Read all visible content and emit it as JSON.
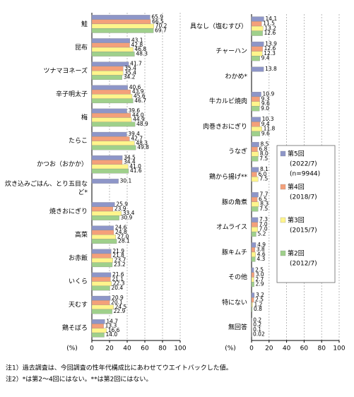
{
  "chart_data": [
    {
      "type": "bar",
      "orientation": "horizontal",
      "xlabel": "(%)",
      "categories": [
        "鮭",
        "昆布",
        "ツナマヨネーズ",
        "辛子明太子",
        "梅",
        "たらこ",
        "かつお（おかか）",
        "炊き込みごはん、とり五目など*",
        "焼きおにぎり",
        "高菜",
        "お赤飯",
        "いくら",
        "天むす",
        "鶏そぼろ"
      ],
      "series": [
        {
          "color": "#8e96c8",
          "values": [
            65.9,
            43.1,
            41.7,
            40.6,
            39.6,
            39.4,
            34.5,
            30.1,
            25.9,
            24.6,
            21.9,
            21.6,
            20.9,
            14.7
          ],
          "value_labels": [
            "65.9",
            "43.1",
            "41.7",
            "40.6",
            "39.6",
            "39.4",
            "34.5",
            "30.1",
            "25.9",
            "24.6",
            "21.9",
            "21.6",
            "20.9",
            "14.7"
          ]
        },
        {
          "color": "#f4a07a",
          "values": [
            66.5,
            42.8,
            35.4,
            43.9,
            44,
            42.7,
            34.4,
            null,
            23.9,
            24.8,
            21.8,
            21.1,
            20.1,
            13.3
          ],
          "value_labels": [
            "66.5",
            "42.8",
            "35.4",
            "43.9",
            "44.0",
            "42.7",
            "34.4",
            null,
            "23.9",
            "24.8",
            "21.8",
            "21.1",
            "20.1",
            "13.3"
          ]
        },
        {
          "color": "#fff58c",
          "values": [
            70.2,
            46.8,
            35.4,
            45.6,
            44.9,
            48.3,
            41,
            null,
            33.4,
            27,
            23.7,
            22.3,
            24.5,
            16.6
          ],
          "value_labels": [
            "70.2",
            "46.8",
            "35.4",
            "45.6",
            "44.9",
            "48.3",
            "41.0",
            null,
            "33.4",
            "27.0",
            "23.7",
            "22.3",
            "24.5",
            "16.6"
          ]
        },
        {
          "color": "#9fd08b",
          "values": [
            69.7,
            48.3,
            34.2,
            46.7,
            48.9,
            49.8,
            41.6,
            null,
            30.9,
            28.1,
            23.2,
            20.4,
            22.9,
            14
          ],
          "value_labels": [
            "69.7",
            "48.3",
            "34.2",
            "46.7",
            "48.9",
            "49.8",
            "41.6",
            null,
            "30.9",
            "28.1",
            "23.2",
            "20.4",
            "22.9",
            "14.0"
          ]
        }
      ],
      "xlim": [
        0,
        100
      ],
      "xticks": [
        0,
        20,
        40,
        60,
        80,
        100
      ],
      "grid": true
    },
    {
      "type": "bar",
      "orientation": "horizontal",
      "xlabel": "(%)",
      "categories": [
        "具なし（塩むすび）",
        "チャーハン",
        "わかめ*",
        "牛カルビ焼肉",
        "肉巻きおにぎり",
        "うなぎ",
        "鶏から揚げ**",
        "豚の角煮",
        "オムライス",
        "豚キムチ",
        "その他",
        "特にない",
        "無回答"
      ],
      "series": [
        {
          "name": "第5回",
          "period": "(2022/7)",
          "sample": "(n=9944)",
          "color": "#8e96c8",
          "values": [
            14.1,
            13.9,
            13.8,
            10.9,
            10.3,
            8.5,
            8.1,
            7.7,
            7.3,
            4.9,
            2.5,
            3.2,
            0.2
          ],
          "value_labels": [
            "14.1",
            "13.9",
            "13.8",
            "10.9",
            "10.3",
            "8.5",
            "8.1",
            "7.7",
            "7.3",
            "4.9",
            "2.5",
            "3.2",
            "0.2"
          ]
        },
        {
          "name": "第4回",
          "period": "(2018/7)",
          "color": "#f4a07a",
          "values": [
            11.5,
            12.6,
            null,
            9.3,
            9.4,
            6.8,
            6,
            6.5,
            7,
            3.8,
            3,
            2.5,
            0.2
          ],
          "value_labels": [
            "11.5",
            "12.6",
            null,
            "9.3",
            "9.4",
            "6.8",
            "6.0",
            "6.5",
            "7.0",
            "3.8",
            "3.0",
            "2.5",
            "0.2"
          ]
        },
        {
          "name": "第3回",
          "period": "(2015/7)",
          "color": "#fff58c",
          "values": [
            13.2,
            12.3,
            null,
            9.6,
            11.8,
            8,
            7.5,
            8.3,
            7,
            4.6,
            2.7,
            1.2,
            0.1
          ],
          "value_labels": [
            "13.2",
            "12.3",
            null,
            "9.6",
            "11.8",
            "8.0",
            "7.5",
            "8.3",
            "7.0",
            "4.6",
            "2.7",
            "1.2",
            "0.1"
          ]
        },
        {
          "name": "第2回",
          "period": "(2012/7)",
          "color": "#9fd08b",
          "values": [
            12.6,
            9.4,
            null,
            9,
            9.6,
            7.5,
            null,
            7.5,
            5.2,
            4.3,
            2.9,
            0.8,
            0.02
          ],
          "value_labels": [
            "12.6",
            "9.4",
            null,
            "9.0",
            "9.6",
            "7.5",
            null,
            "7.5",
            "5.2",
            "4.3",
            "2.9",
            "0.8",
            "0.02"
          ]
        }
      ],
      "xlim": [
        0,
        100
      ],
      "xticks": [
        0,
        20,
        40,
        60,
        80,
        100
      ],
      "grid": true
    }
  ],
  "notes": [
    "注1）過去調査は、今回調査の性年代構成比にあわせてウエイトバックした値。",
    "注2）*は第2～4回にはない。**は第2回にはない。"
  ]
}
